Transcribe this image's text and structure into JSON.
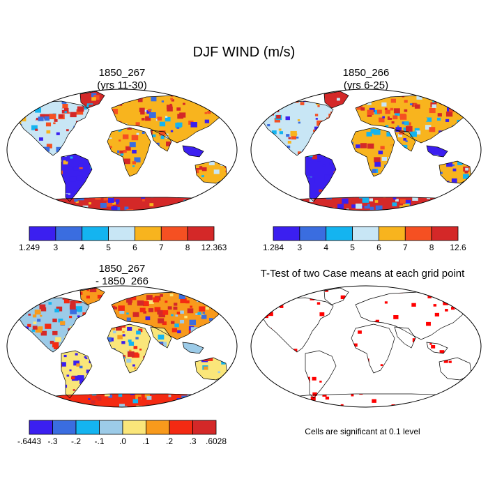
{
  "main_title": "DJF WIND (m/s)",
  "panels": [
    {
      "title_line1": "1850_267",
      "title_line2": "(yrs 11-30)",
      "colorbar": {
        "colors": [
          "#3b1ff0",
          "#3a6de0",
          "#14b4f0",
          "#c8e6f5",
          "#f8b41e",
          "#f55022",
          "#d42828"
        ],
        "labels": [
          "1.249",
          "3",
          "4",
          "5",
          "6",
          "7",
          "8",
          "12.363"
        ]
      }
    },
    {
      "title_line1": "1850_266",
      "title_line2": "(yrs 6-25)",
      "colorbar": {
        "colors": [
          "#3b1ff0",
          "#3a6de0",
          "#14b4f0",
          "#c8e6f5",
          "#f8b41e",
          "#f55022",
          "#d42828"
        ],
        "labels": [
          "1.284",
          "3",
          "4",
          "5",
          "6",
          "7",
          "8",
          "12.6"
        ]
      }
    },
    {
      "title_line1": "1850_267",
      "title_line2": "- 1850_266",
      "colorbar": {
        "colors": [
          "#3b1ff0",
          "#3a6de0",
          "#14b4f0",
          "#9ccbe8",
          "#fae67a",
          "#f89a1c",
          "#f42a12",
          "#d42828"
        ],
        "labels": [
          "-.6443",
          "-.3",
          "-.2",
          "-.1",
          ".0",
          ".1",
          ".2",
          ".3",
          ".6028"
        ]
      }
    },
    {
      "title_line1": "T-Test of two Case means at each grid point",
      "title_line2": "",
      "note": "Cells are significant at 0.1 level"
    }
  ]
}
